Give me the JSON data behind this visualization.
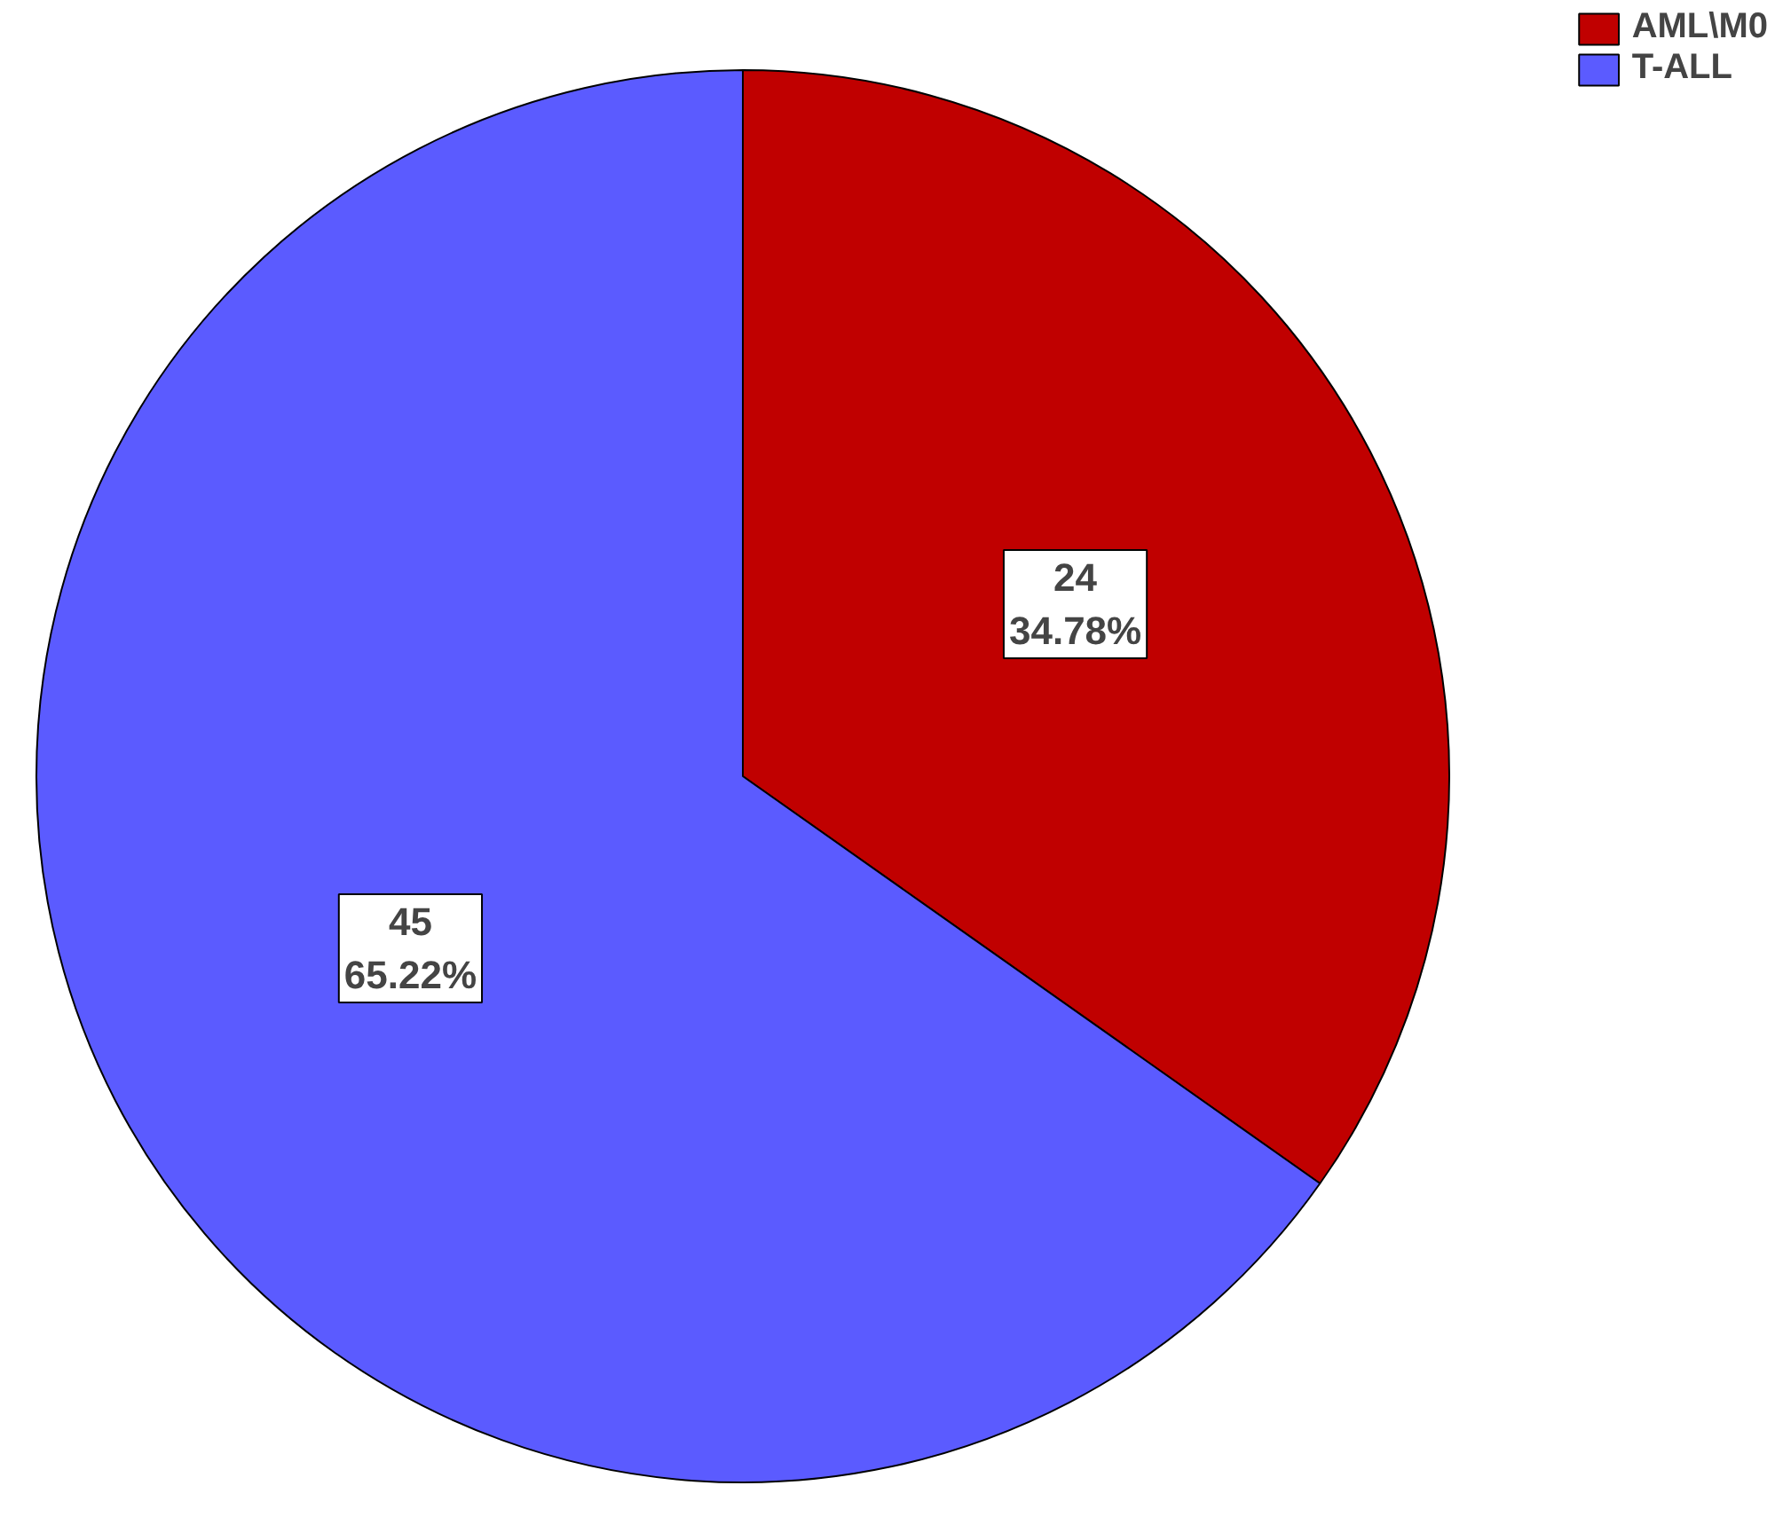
{
  "chart_data": {
    "type": "pie",
    "categories": [
      "AML\\M0",
      "T-ALL"
    ],
    "values": [
      24,
      45
    ],
    "colors": [
      "#c00000",
      "#5b5bff"
    ],
    "value_labels": [
      "24\n34.78%",
      "45\n65.22%"
    ],
    "legend": "top right"
  }
}
